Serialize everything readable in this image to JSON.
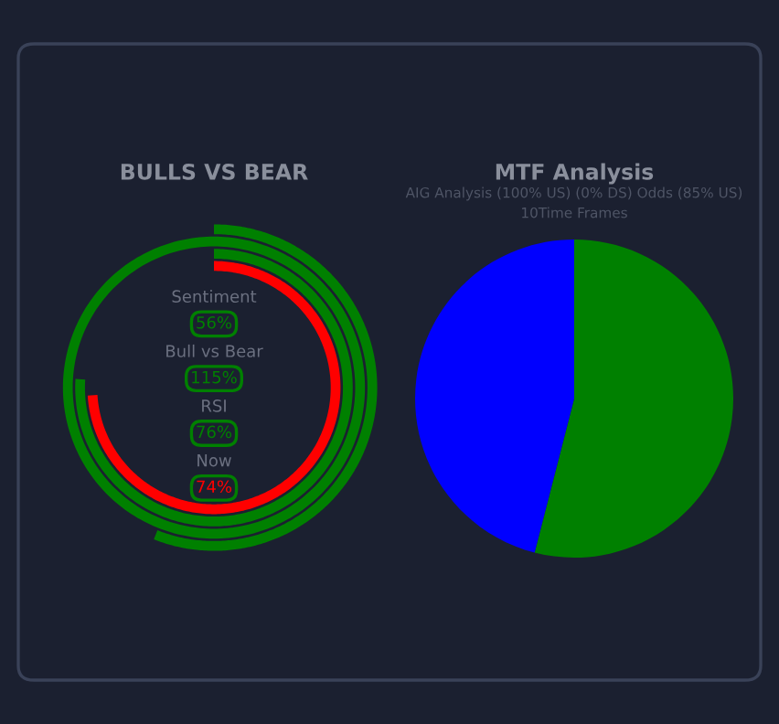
{
  "chart_data": [
    {
      "type": "other",
      "title": "BULLS VS BEAR",
      "categories": [
        "Sentiment",
        "Bull vs Bear",
        "RSI",
        "Now"
      ],
      "values": [
        56,
        115,
        76,
        74
      ],
      "value_labels": [
        "56%",
        "115%",
        "76%",
        "74%"
      ],
      "colors": [
        "#008000",
        "#008000",
        "#008000",
        "#ff0000"
      ]
    },
    {
      "type": "pie",
      "title": "MTF Analysis",
      "subtitle": "AIG Analysis (100% US) (0% DS) Odds (85% US)",
      "annotations": [
        "10Time Frames"
      ],
      "categories": [
        null,
        null
      ],
      "values": [
        54,
        46
      ],
      "colors": [
        "#008000",
        "#0000ff"
      ]
    }
  ]
}
